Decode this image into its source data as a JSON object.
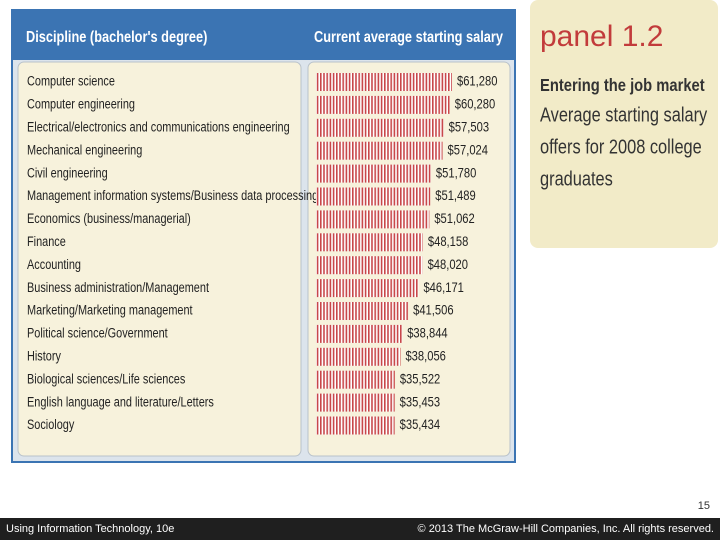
{
  "chart_data": {
    "type": "bar",
    "orientation": "horizontal",
    "category_header": "Discipline (bachelor's degree)",
    "value_header": "Current average starting salary",
    "color": "#c8474a",
    "categories": [
      "Computer science",
      "Computer engineering",
      "Electrical/electronics and communications engineering",
      "Mechanical engineering",
      "Civil engineering",
      "Management information systems/Business data processing",
      "Economics (business/managerial)",
      "Finance",
      "Accounting",
      "Business administration/Management",
      "Marketing/Marketing management",
      "Political science/Government",
      "History",
      "Biological sciences/Life sciences",
      "English language and literature/Letters",
      "Sociology"
    ],
    "values": [
      61280,
      60280,
      57503,
      57024,
      51780,
      51489,
      51062,
      48158,
      48020,
      46171,
      41506,
      38844,
      38056,
      35522,
      35453,
      35434
    ],
    "value_labels": [
      "$61,280",
      "$60,280",
      "$57,503",
      "$57,024",
      "$51,780",
      "$51,489",
      "$51,062",
      "$48,158",
      "$48,020",
      "$46,171",
      "$41,506",
      "$38,844",
      "$38,056",
      "$35,522",
      "$35,453",
      "$35,434"
    ]
  },
  "panel": {
    "label": "panel 1.2",
    "heading": "Entering the job market",
    "lines": [
      "Average starting salary",
      "offers for 2008 college",
      "graduates"
    ]
  },
  "slide": {
    "number": "15",
    "footer_left": "Using Information Technology, 10e",
    "footer_right": "© 2013 The McGraw-Hill Companies, Inc. All rights reserved."
  }
}
